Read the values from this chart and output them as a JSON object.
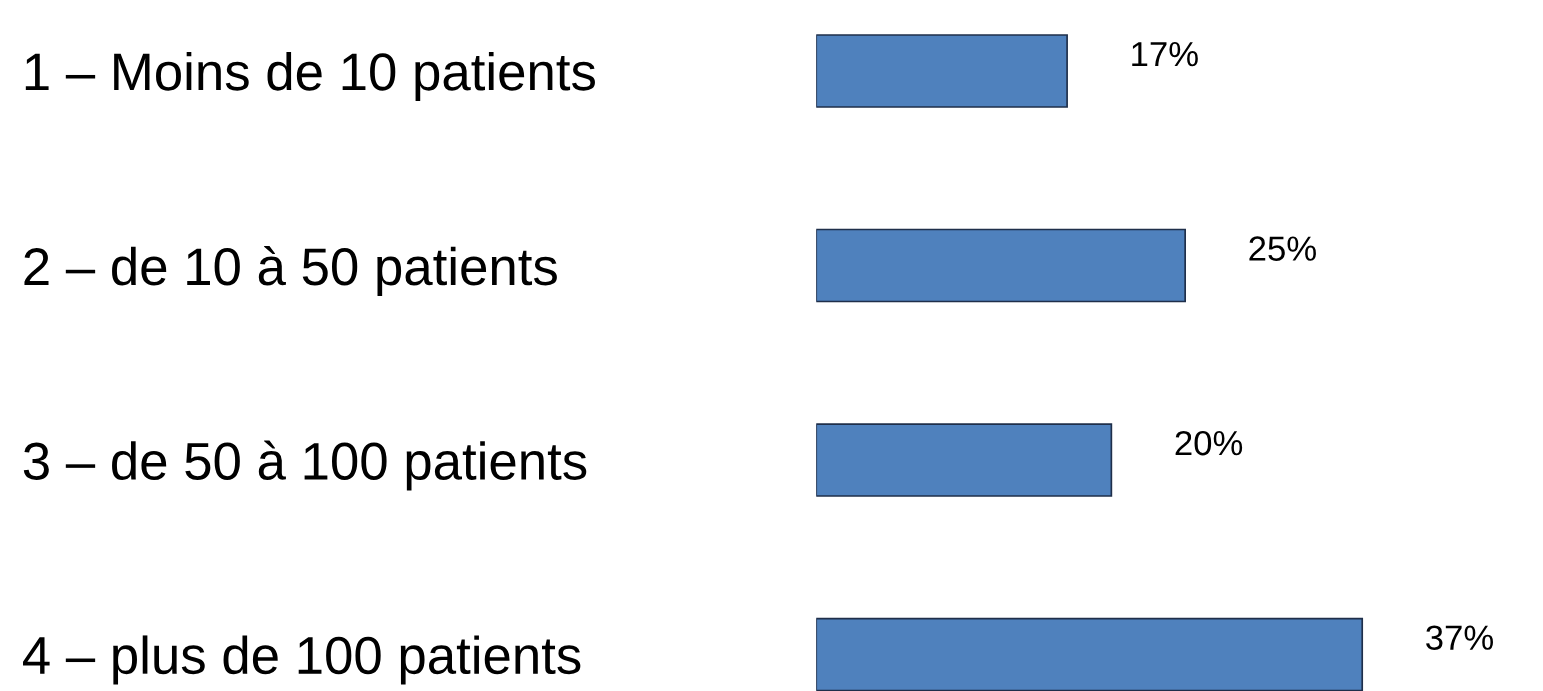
{
  "chart_data": {
    "type": "bar",
    "orientation": "horizontal",
    "categories": [
      "1 – Moins de 10 patients",
      "2 – de 10 à 50 patients",
      "3 – de 50 à 100 patients",
      "4 – plus de 100 patients"
    ],
    "values": [
      17,
      25,
      20,
      37
    ],
    "value_labels": [
      "17%",
      "25%",
      "20%",
      "37%"
    ],
    "color": "#4f81bd",
    "tick_labels": "y"
  }
}
